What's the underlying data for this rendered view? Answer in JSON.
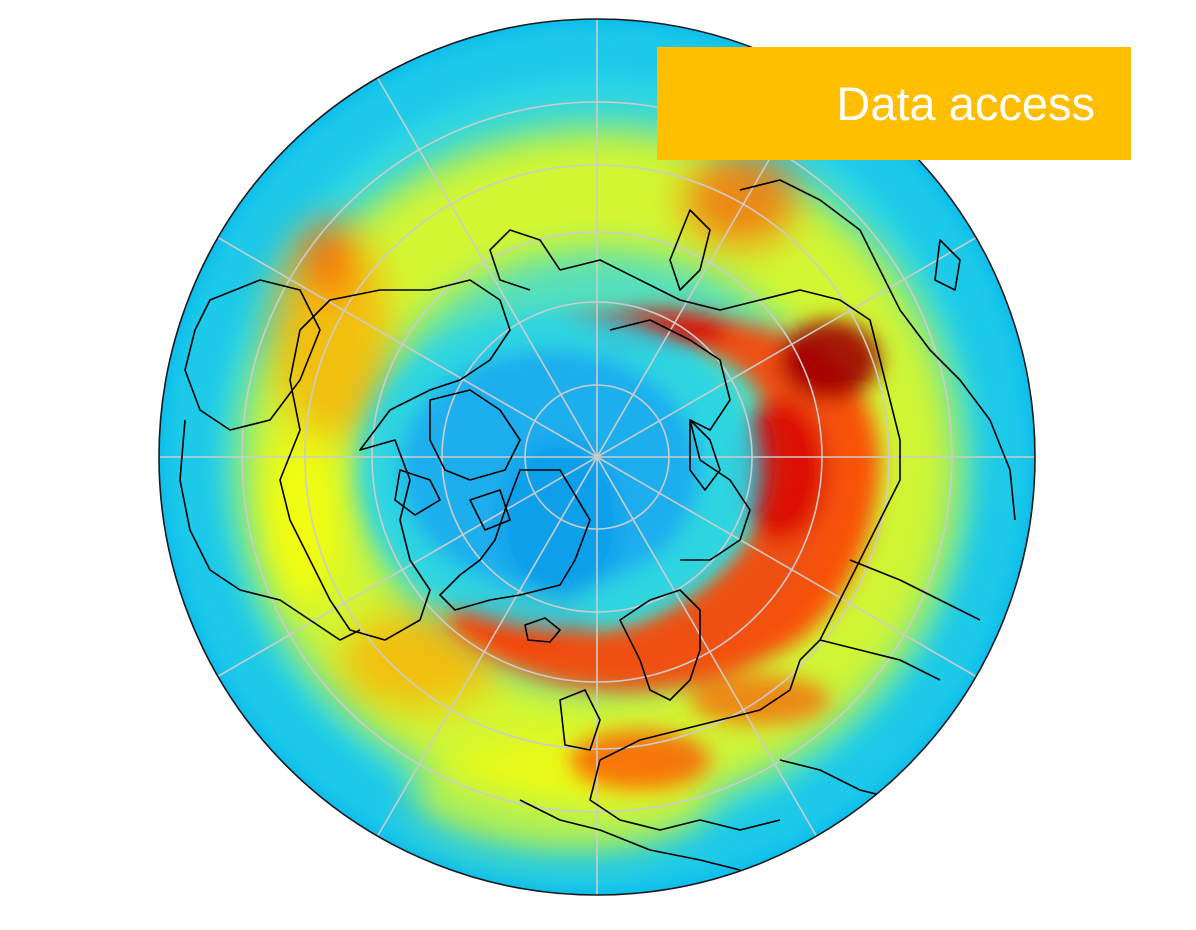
{
  "banner": {
    "label": "Data access",
    "color": "#ffbf00",
    "text_color": "#ffffff"
  },
  "map": {
    "projection": "north-polar-orthographic",
    "colormap": [
      "#00b2f0",
      "#2ad4e6",
      "#5ee3b4",
      "#b9f24a",
      "#ffff00",
      "#ffa800",
      "#ff4000",
      "#d90000",
      "#a00000"
    ],
    "coastline_color": "#000000",
    "graticule_color": "#c8c8c8"
  }
}
